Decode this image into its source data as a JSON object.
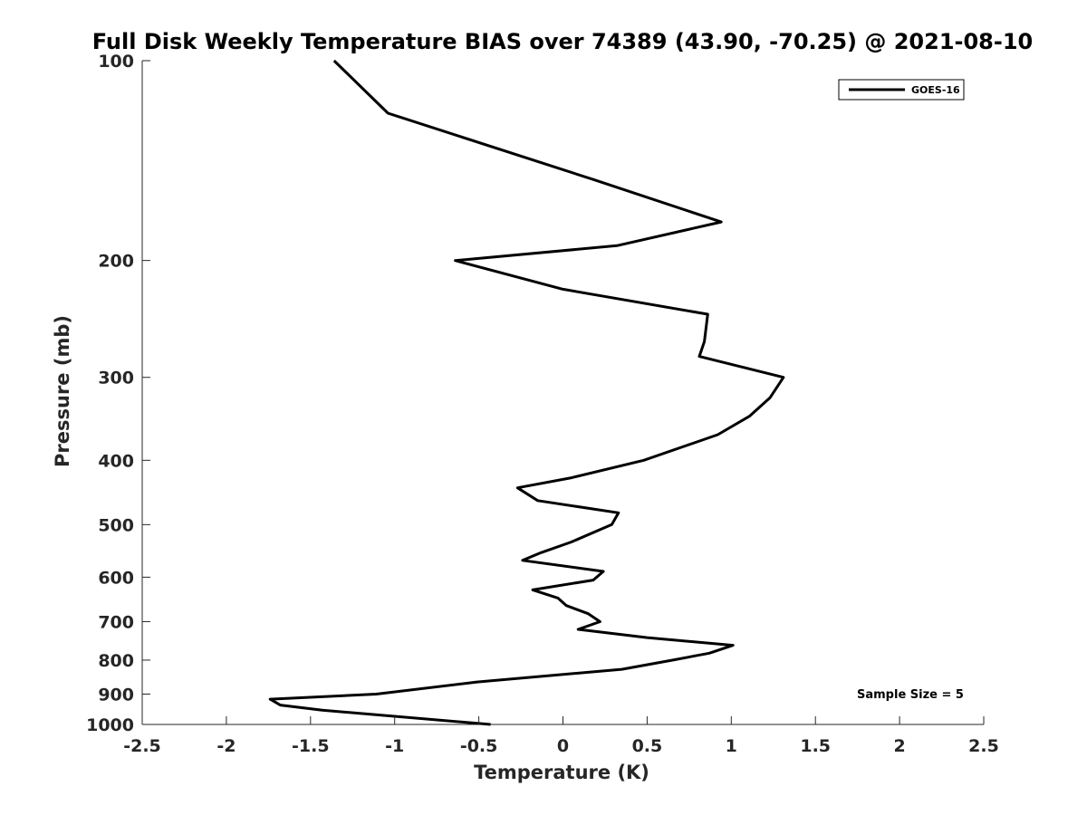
{
  "chart_data": {
    "type": "line",
    "title": "Full Disk Weekly Temperature BIAS over 74389 (43.90, -70.25) @ 2021-08-10",
    "xlabel": "Temperature (K)",
    "ylabel": "Pressure (mb)",
    "xlim": [
      -2.5,
      2.5
    ],
    "ylim": [
      1000,
      100
    ],
    "yscale": "log",
    "y_reversed": true,
    "grid": false,
    "xticks": [
      -2.5,
      -2,
      -1.5,
      -1,
      -0.5,
      0,
      0.5,
      1,
      1.5,
      2,
      2.5
    ],
    "xtick_labels": [
      "-2.5",
      "-2",
      "-1.5",
      "-1",
      "-0.5",
      "0",
      "0.5",
      "1",
      "1.5",
      "2",
      "2.5"
    ],
    "yticks": [
      100,
      200,
      300,
      400,
      500,
      600,
      700,
      800,
      900,
      1000
    ],
    "ytick_labels": [
      "100",
      "200",
      "300",
      "400",
      "500",
      "600",
      "700",
      "800",
      "900",
      "1000"
    ],
    "legend_position": "top-right",
    "series": [
      {
        "name": "GOES-16",
        "color": "#000000",
        "points": [
          [
            -1.36,
            100
          ],
          [
            -1.04,
            120
          ],
          [
            0.18,
            151
          ],
          [
            0.94,
            175
          ],
          [
            0.32,
            190
          ],
          [
            -0.64,
            200
          ],
          [
            0.0,
            221
          ],
          [
            0.86,
            241
          ],
          [
            0.84,
            265
          ],
          [
            0.81,
            279
          ],
          [
            1.31,
            300
          ],
          [
            1.23,
            322
          ],
          [
            1.11,
            343
          ],
          [
            0.92,
            366
          ],
          [
            0.48,
            400
          ],
          [
            0.05,
            425
          ],
          [
            -0.27,
            440
          ],
          [
            -0.15,
            460
          ],
          [
            0.33,
            480
          ],
          [
            0.29,
            500
          ],
          [
            0.05,
            531
          ],
          [
            -0.13,
            551
          ],
          [
            -0.24,
            566
          ],
          [
            0.24,
            588
          ],
          [
            0.18,
            606
          ],
          [
            -0.18,
            627
          ],
          [
            -0.03,
            645
          ],
          [
            0.02,
            662
          ],
          [
            0.15,
            681
          ],
          [
            0.22,
            700
          ],
          [
            0.09,
            719
          ],
          [
            0.5,
            740
          ],
          [
            1.01,
            760
          ],
          [
            0.87,
            781
          ],
          [
            0.65,
            800
          ],
          [
            0.35,
            826
          ],
          [
            -0.51,
            863
          ],
          [
            -1.11,
            900
          ],
          [
            -1.74,
            916
          ],
          [
            -1.68,
            935
          ],
          [
            -1.43,
            952
          ],
          [
            -0.43,
            1000
          ]
        ]
      }
    ],
    "annotations": [
      "Sample Size = 5"
    ]
  }
}
